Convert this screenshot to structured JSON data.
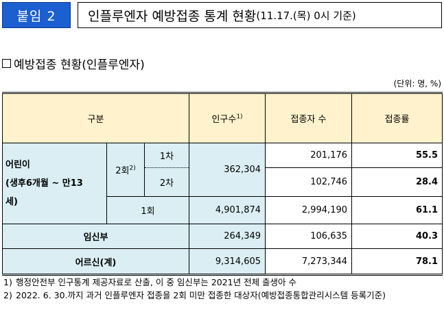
{
  "badge": "붙임 2",
  "title": "인플루엔자 예방접종 통계 현황",
  "title_sub": "(11.17.(목) 0시 기준)",
  "section_title": "예방접종 현황(인플루엔자)",
  "unit": "(단위: 명, %)",
  "table": {
    "headers": {
      "group": "구분",
      "population": "인구수",
      "population_note": "1)",
      "vaccinated": "접종자 수",
      "rate": "접종률"
    },
    "children": {
      "label_line1": "어린이",
      "label_line2": "(생후6개월 ~ 만13",
      "label_line3": "세)",
      "two_dose": "2회",
      "two_dose_note": "2)",
      "dose1_label": "1차",
      "dose2_label": "2차",
      "two_dose_population": "362,304",
      "dose1_vaccinated": "201,176",
      "dose1_rate": "55.5",
      "dose2_vaccinated": "102,746",
      "dose2_rate": "28.4",
      "one_dose": "1회",
      "one_dose_population": "4,901,874",
      "one_dose_vaccinated": "2,994,190",
      "one_dose_rate": "61.1"
    },
    "pregnant": {
      "label": "임신부",
      "population": "264,349",
      "vaccinated": "106,635",
      "rate": "40.3"
    },
    "elderly": {
      "label": "어르신(계)",
      "population": "9,314,605",
      "vaccinated": "7,273,344",
      "rate": "78.1"
    }
  },
  "notes": [
    {
      "num": "1)",
      "text": "행정안전부 인구통계 제공자료로 산출, 이 중 임신부는 2021년 전체 출생아 수"
    },
    {
      "num": "2)",
      "text": "2022. 6. 30.까지 과거 인플루엔자 접종을 2회 미만 접종한 대상자(예방접종통합관리시스템 등록기준)"
    }
  ]
}
